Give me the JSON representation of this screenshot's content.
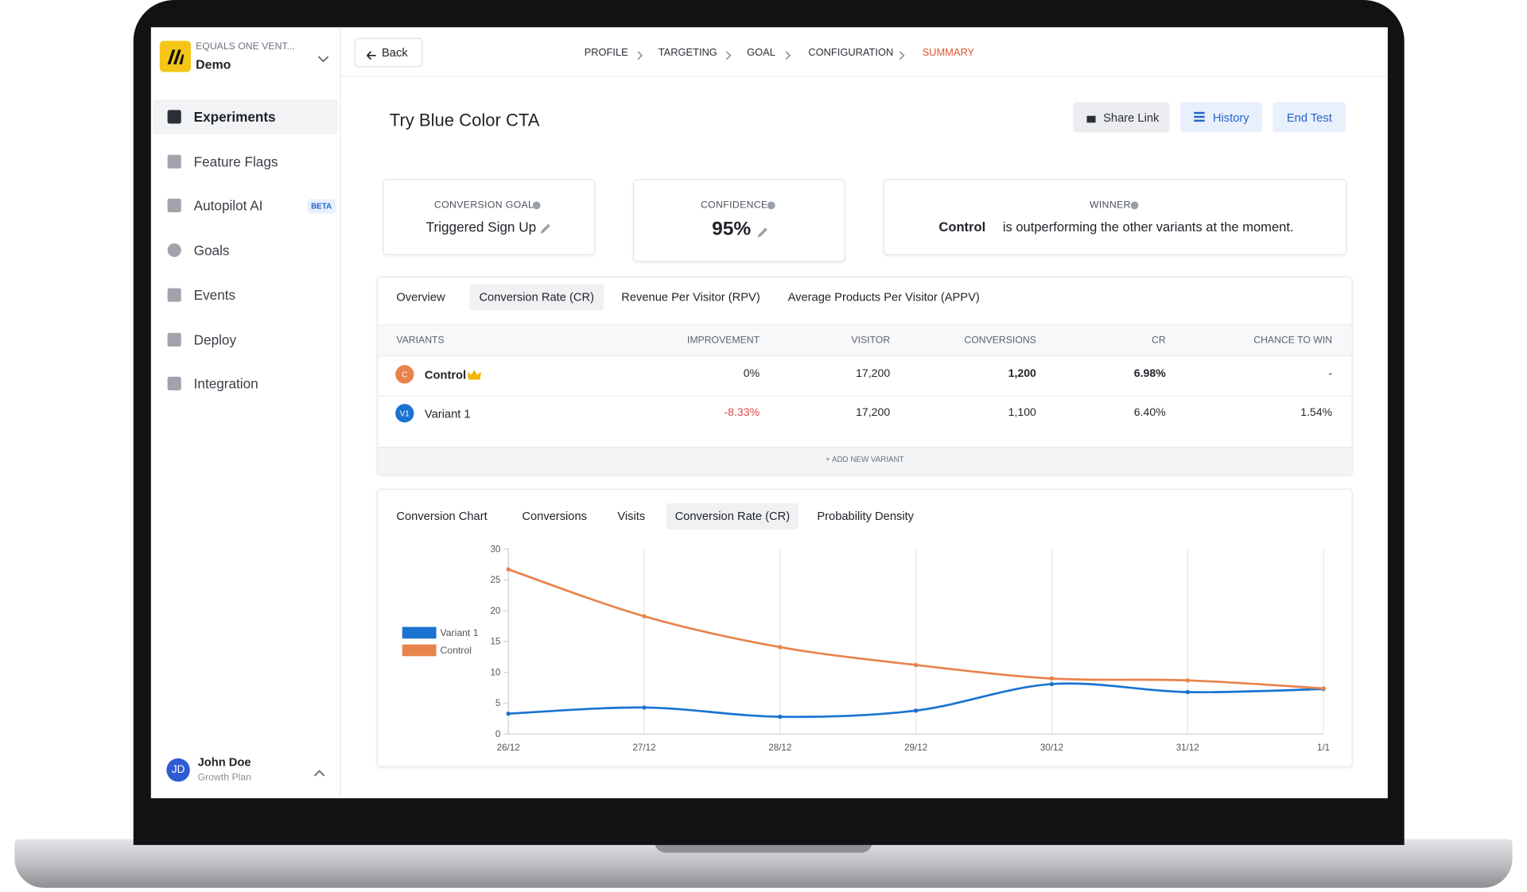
{
  "sidebar": {
    "org": "EQUALS ONE VENT...",
    "workspace": "Demo",
    "nav": [
      "Experiments",
      "Feature Flags",
      "Autopilot AI",
      "Goals",
      "Events",
      "Deploy",
      "Integration"
    ],
    "badge": "BETA",
    "user": {
      "initials": "JD",
      "name": "John Doe",
      "plan": "Growth Plan"
    }
  },
  "header": {
    "back": "Back",
    "steps": [
      "PROFILE",
      "TARGETING",
      "GOAL",
      "CONFIGURATION",
      "SUMMARY"
    ]
  },
  "title": "Try Blue Color CTA",
  "actions": [
    "Share Link",
    "History",
    "End Test"
  ],
  "cards": [
    {
      "label": "CONVERSION GOAL",
      "value": "Triggered Sign Up"
    },
    {
      "label": "CONFIDENCE",
      "value": "95%"
    },
    {
      "label": "WINNER",
      "winner": "Control",
      "value": "is outperforming the other variants at the moment."
    }
  ],
  "table": {
    "tabs": [
      "Overview",
      "Conversion Rate (CR)",
      "Revenue Per Visitor (RPV)",
      "Average Products Per Visitor (APPV)"
    ],
    "columns": [
      "VARIANTS",
      "IMPROVEMENT",
      "VISITOR",
      "CONVERSIONS",
      "CR",
      "CHANCE TO WIN"
    ],
    "rows": [
      [
        "C",
        "Control",
        "0%",
        "17,200",
        "1,200",
        "6.98%",
        "-"
      ],
      [
        "V1",
        "Variant 1",
        "-8.33%",
        "17,200",
        "1,100",
        "6.40%",
        "1.54%"
      ]
    ],
    "add": "+ ADD NEW VARIANT"
  },
  "chart_tabs": [
    "Conversion Chart",
    "Conversions",
    "Visits",
    "Conversion Rate (CR)",
    "Probability Density"
  ],
  "chart_data": {
    "type": "line",
    "categories": [
      "26/12",
      "27/12",
      "28/12",
      "29/12",
      "30/12",
      "31/12",
      "1/1"
    ],
    "series": [
      {
        "name": "Variant 1",
        "color": "#1a73d1",
        "values": [
          3.3,
          4.3,
          2.8,
          3.8,
          8.1,
          6.8,
          7.3
        ]
      },
      {
        "name": "Control",
        "color": "#e8834d",
        "values": [
          26.7,
          19.1,
          14.1,
          11.2,
          9.0,
          8.7,
          7.4
        ]
      }
    ],
    "ylim": [
      0,
      30
    ],
    "yticks": [
      0,
      5,
      10,
      15,
      20,
      25,
      30
    ],
    "grid": true,
    "legend": "left"
  }
}
